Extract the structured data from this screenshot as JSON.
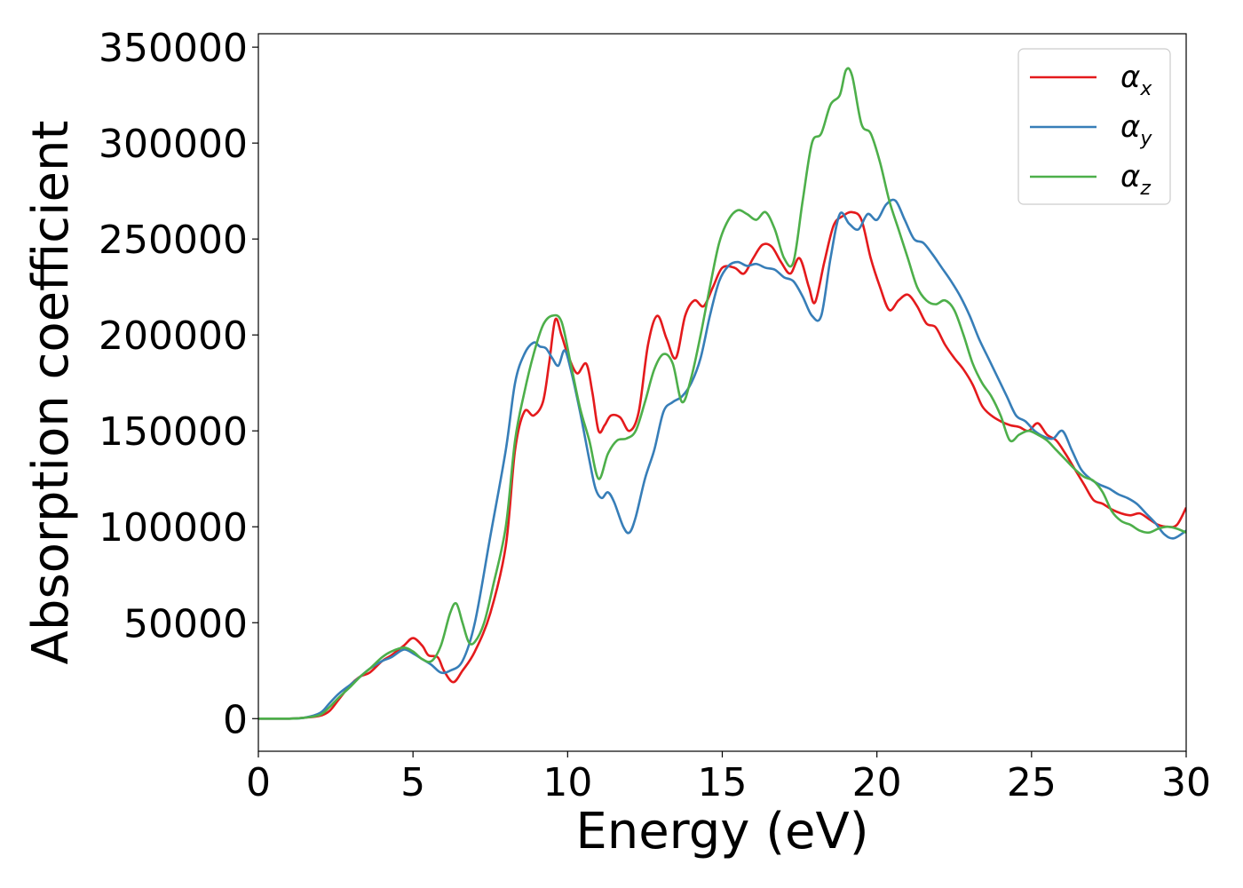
{
  "chart_data": {
    "type": "line",
    "xlabel": "Energy (eV)",
    "ylabel": "Absorption coefficient",
    "xlim": [
      0,
      30
    ],
    "ylim": [
      -17000,
      357000
    ],
    "xticks": [
      "0",
      "5",
      "10",
      "15",
      "20",
      "25",
      "30"
    ],
    "yticks": [
      "0",
      "50000",
      "100000",
      "150000",
      "200000",
      "250000",
      "300000",
      "350000"
    ],
    "grid": false,
    "legend_position": "top-right",
    "series": [
      {
        "name": "αx",
        "legend_main": "α",
        "legend_sub": "x",
        "color": "#e41a1c",
        "x": [
          0,
          1,
          1.5,
          2,
          2.3,
          2.6,
          3,
          3.3,
          3.6,
          4,
          4.3,
          4.7,
          5,
          5.3,
          5.5,
          5.8,
          6,
          6.3,
          6.6,
          7,
          7.5,
          8,
          8.3,
          8.6,
          8.9,
          9.2,
          9.4,
          9.6,
          9.8,
          10,
          10.3,
          10.6,
          10.8,
          11,
          11.2,
          11.4,
          11.7,
          12,
          12.3,
          12.6,
          12.9,
          13.2,
          13.5,
          13.8,
          14.1,
          14.4,
          14.7,
          15,
          15.4,
          15.7,
          16,
          16.3,
          16.6,
          16.9,
          17.2,
          17.5,
          17.8,
          18,
          18.3,
          18.6,
          18.9,
          19.2,
          19.5,
          19.8,
          20.1,
          20.4,
          20.7,
          21,
          21.3,
          21.6,
          21.9,
          22.2,
          22.5,
          22.8,
          23.1,
          23.4,
          23.7,
          24,
          24.3,
          24.6,
          24.9,
          25.2,
          25.5,
          25.8,
          26.1,
          26.4,
          26.7,
          27,
          27.3,
          27.6,
          27.9,
          28.2,
          28.5,
          28.8,
          29.1,
          29.4,
          29.7,
          30
        ],
        "y": [
          0,
          0,
          500,
          1500,
          4000,
          10000,
          18000,
          22000,
          24000,
          30000,
          33000,
          38000,
          42000,
          38000,
          33000,
          32000,
          25000,
          19000,
          25000,
          35000,
          55000,
          90000,
          140000,
          160000,
          158000,
          165000,
          185000,
          208000,
          200000,
          190000,
          180000,
          185000,
          170000,
          150000,
          153000,
          158000,
          157000,
          150000,
          160000,
          195000,
          210000,
          198000,
          188000,
          210000,
          218000,
          215000,
          225000,
          235000,
          235000,
          232000,
          240000,
          247000,
          246000,
          238000,
          232000,
          240000,
          225000,
          217000,
          238000,
          257000,
          262000,
          264000,
          260000,
          240000,
          225000,
          213000,
          218000,
          221000,
          215000,
          206000,
          204000,
          195000,
          188000,
          182000,
          174000,
          163000,
          158000,
          155000,
          153000,
          152000,
          150000,
          154000,
          148000,
          145000,
          138000,
          130000,
          122000,
          114000,
          112000,
          109000,
          107000,
          106000,
          107000,
          104000,
          101000,
          100000,
          101000,
          110000
        ]
      },
      {
        "name": "αy",
        "legend_main": "α",
        "legend_sub": "y",
        "color": "#377eb8",
        "x": [
          0,
          1,
          1.5,
          2,
          2.3,
          2.6,
          3,
          3.3,
          3.6,
          4,
          4.3,
          4.7,
          5,
          5.3,
          5.6,
          5.9,
          6.2,
          6.6,
          7,
          7.5,
          8,
          8.3,
          8.6,
          8.9,
          9.1,
          9.3,
          9.5,
          9.7,
          9.9,
          10.1,
          10.4,
          10.7,
          10.9,
          11.1,
          11.3,
          11.5,
          11.8,
          12,
          12.2,
          12.5,
          12.8,
          13.1,
          13.4,
          13.7,
          14,
          14.3,
          14.6,
          14.9,
          15.2,
          15.5,
          15.8,
          16.1,
          16.4,
          16.7,
          17,
          17.3,
          17.6,
          17.9,
          18.2,
          18.5,
          18.8,
          19.1,
          19.4,
          19.7,
          20,
          20.3,
          20.6,
          20.9,
          21.2,
          21.5,
          21.8,
          22.1,
          22.4,
          22.7,
          23,
          23.3,
          23.6,
          23.9,
          24.2,
          24.5,
          24.8,
          25.1,
          25.4,
          25.7,
          26,
          26.3,
          26.6,
          26.9,
          27.2,
          27.5,
          27.8,
          28.1,
          28.4,
          28.7,
          29,
          29.3,
          29.6,
          30
        ],
        "y": [
          0,
          0,
          500,
          3000,
          8000,
          13000,
          18000,
          22000,
          26000,
          30000,
          32000,
          36000,
          34000,
          31000,
          28000,
          24000,
          25000,
          30000,
          50000,
          95000,
          140000,
          175000,
          190000,
          196000,
          194000,
          193000,
          188000,
          184000,
          192000,
          182000,
          160000,
          135000,
          120000,
          115000,
          118000,
          113000,
          100000,
          97000,
          105000,
          125000,
          140000,
          160000,
          165000,
          168000,
          175000,
          188000,
          210000,
          228000,
          236000,
          238000,
          236000,
          237000,
          235000,
          234000,
          230000,
          228000,
          220000,
          210000,
          210000,
          240000,
          263000,
          258000,
          255000,
          263000,
          260000,
          268000,
          270000,
          260000,
          250000,
          248000,
          242000,
          235000,
          228000,
          220000,
          210000,
          198000,
          188000,
          178000,
          168000,
          158000,
          155000,
          150000,
          147000,
          146000,
          150000,
          140000,
          130000,
          125000,
          122000,
          120000,
          117000,
          115000,
          112000,
          107000,
          102000,
          96000,
          94000,
          98000
        ]
      },
      {
        "name": "αz",
        "legend_main": "α",
        "legend_sub": "z",
        "color": "#4daf4a",
        "x": [
          0,
          1,
          1.5,
          2,
          2.3,
          2.6,
          3,
          3.3,
          3.6,
          4,
          4.3,
          4.7,
          5,
          5.3,
          5.6,
          5.9,
          6.2,
          6.4,
          6.6,
          6.8,
          7,
          7.3,
          7.6,
          8,
          8.3,
          8.6,
          8.9,
          9.2,
          9.5,
          9.8,
          10.1,
          10.4,
          10.7,
          11,
          11.3,
          11.6,
          11.9,
          12.2,
          12.5,
          12.8,
          13.1,
          13.4,
          13.7,
          14,
          14.3,
          14.6,
          14.9,
          15.2,
          15.5,
          15.8,
          16.1,
          16.4,
          16.7,
          17,
          17.3,
          17.6,
          17.9,
          18.2,
          18.5,
          18.8,
          19,
          19.2,
          19.5,
          19.8,
          20.1,
          20.4,
          20.7,
          21,
          21.3,
          21.6,
          21.9,
          22.2,
          22.5,
          22.8,
          23.1,
          23.4,
          23.7,
          24,
          24.3,
          24.6,
          24.9,
          25.2,
          25.5,
          25.8,
          26.1,
          26.4,
          26.7,
          27,
          27.3,
          27.6,
          27.9,
          28.2,
          28.5,
          28.8,
          29.1,
          29.4,
          29.7,
          30
        ],
        "y": [
          0,
          0,
          500,
          2000,
          6000,
          11000,
          17000,
          22000,
          26000,
          32000,
          35000,
          37000,
          35000,
          31000,
          30000,
          38000,
          55000,
          60000,
          50000,
          40000,
          40000,
          50000,
          70000,
          100000,
          145000,
          170000,
          190000,
          205000,
          210000,
          207000,
          185000,
          162000,
          145000,
          125000,
          138000,
          145000,
          146000,
          150000,
          165000,
          182000,
          190000,
          185000,
          165000,
          178000,
          200000,
          225000,
          248000,
          260000,
          265000,
          263000,
          260000,
          264000,
          255000,
          240000,
          238000,
          270000,
          300000,
          305000,
          320000,
          325000,
          338000,
          335000,
          310000,
          305000,
          290000,
          270000,
          255000,
          240000,
          225000,
          218000,
          216000,
          218000,
          213000,
          200000,
          185000,
          175000,
          168000,
          158000,
          145000,
          148000,
          150000,
          148000,
          145000,
          140000,
          135000,
          130000,
          126000,
          124000,
          118000,
          108000,
          103000,
          101000,
          98000,
          97000,
          99000,
          100000,
          99000,
          97000
        ]
      }
    ]
  }
}
